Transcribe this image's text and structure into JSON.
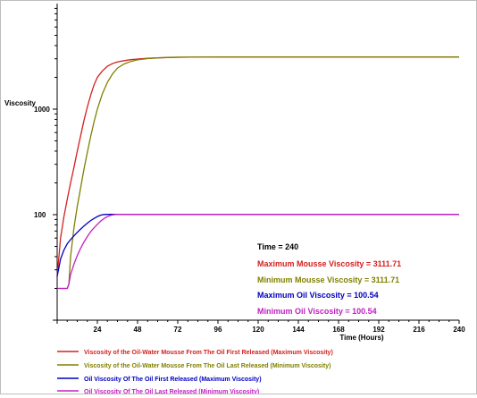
{
  "chart_data": {
    "type": "line",
    "title": "",
    "xlabel": "Time (Hours)",
    "ylabel": "Viscosity",
    "x_scale": "linear",
    "y_scale": "log",
    "xlim": [
      0,
      240
    ],
    "ylim": [
      10,
      10000
    ],
    "x_ticks": [
      0,
      24,
      48,
      72,
      96,
      120,
      144,
      168,
      192,
      216,
      240
    ],
    "x_tick_labels": [
      "24",
      "48",
      "72",
      "96",
      "120",
      "144",
      "168",
      "192",
      "216",
      "240"
    ],
    "y_tick_labels": [
      {
        "value": 100,
        "label": "100"
      },
      {
        "value": 1000,
        "label": "1000"
      }
    ],
    "grid": false,
    "legend_position": "bottom",
    "series": [
      {
        "name": "Viscosity of the Oil-Water Mousse From The Oil First Released (Maximum Viscosity)",
        "color": "#d42020",
        "x": [
          0,
          2,
          4,
          6,
          8,
          10,
          12,
          14,
          16,
          18,
          20,
          22,
          24,
          27,
          30,
          33,
          36,
          40,
          44,
          48,
          54,
          60,
          66,
          72,
          80,
          90,
          100,
          120,
          160,
          200,
          240
        ],
        "y": [
          26,
          60,
          95,
          140,
          200,
          280,
          400,
          560,
          780,
          1050,
          1350,
          1700,
          2000,
          2300,
          2550,
          2700,
          2800,
          2880,
          2940,
          2980,
          3030,
          3060,
          3080,
          3095,
          3105,
          3110,
          3111,
          3111.71,
          3111.71,
          3111.71,
          3111.71
        ]
      },
      {
        "name": "Viscosity of the Oil-Water Mousse From The Oil Last Released (Minimum Viscosity)",
        "color": "#808000",
        "x": [
          0,
          6,
          7,
          8,
          10,
          12,
          14,
          16,
          18,
          20,
          22,
          24,
          27,
          30,
          33,
          36,
          40,
          44,
          48,
          54,
          60,
          66,
          72,
          80,
          90,
          100,
          120,
          160,
          200,
          240
        ],
        "y": [
          20,
          20,
          22,
          40,
          75,
          120,
          180,
          270,
          390,
          550,
          760,
          1000,
          1400,
          1800,
          2150,
          2450,
          2680,
          2830,
          2930,
          3010,
          3060,
          3090,
          3105,
          3110,
          3111,
          3111.71,
          3111.71,
          3111.71,
          3111.71,
          3111.71
        ]
      },
      {
        "name": "Oil Viscosity Of The Oil First Released (Maximum Viscosity)",
        "color": "#0000c0",
        "x": [
          0,
          2,
          4,
          6,
          8,
          10,
          12,
          14,
          16,
          18,
          20,
          22,
          24,
          26,
          28,
          30,
          32,
          35,
          40,
          60,
          100,
          160,
          240
        ],
        "y": [
          26,
          38,
          46,
          53,
          58,
          63,
          68,
          73,
          78,
          83,
          88,
          92,
          96,
          99,
          100.3,
          100.5,
          100.54,
          100.54,
          100.54,
          100.54,
          100.54,
          100.54,
          100.54
        ]
      },
      {
        "name": "Oil Viscosity Of The Oil Last Released (Minimum Viscosity)",
        "color": "#c020c0",
        "x": [
          0,
          6,
          7,
          8,
          10,
          12,
          14,
          16,
          18,
          20,
          22,
          24,
          26,
          28,
          30,
          32,
          34,
          36,
          40,
          60,
          100,
          160,
          240
        ],
        "y": [
          20,
          20,
          22,
          27,
          34,
          41,
          48,
          55,
          62,
          69,
          75,
          81,
          87,
          92,
          96,
          98.5,
          100,
          100.5,
          100.54,
          100.54,
          100.54,
          100.54,
          100.54
        ]
      }
    ]
  },
  "readout": {
    "time": "Time = 240",
    "max_mousse": "Maximum Mousse Viscosity = 3111.71",
    "min_mousse": "Minimum Mousse Viscosity = 3111.71",
    "max_oil": "Maximum Oil Viscosity = 100.54",
    "min_oil": "Minimum Oil Viscosity = 100.54"
  },
  "colors": {
    "max_mousse": "#d42020",
    "min_mousse": "#808000",
    "max_oil": "#0000c0",
    "min_oil": "#c020c0",
    "readout_time": "#000000"
  }
}
